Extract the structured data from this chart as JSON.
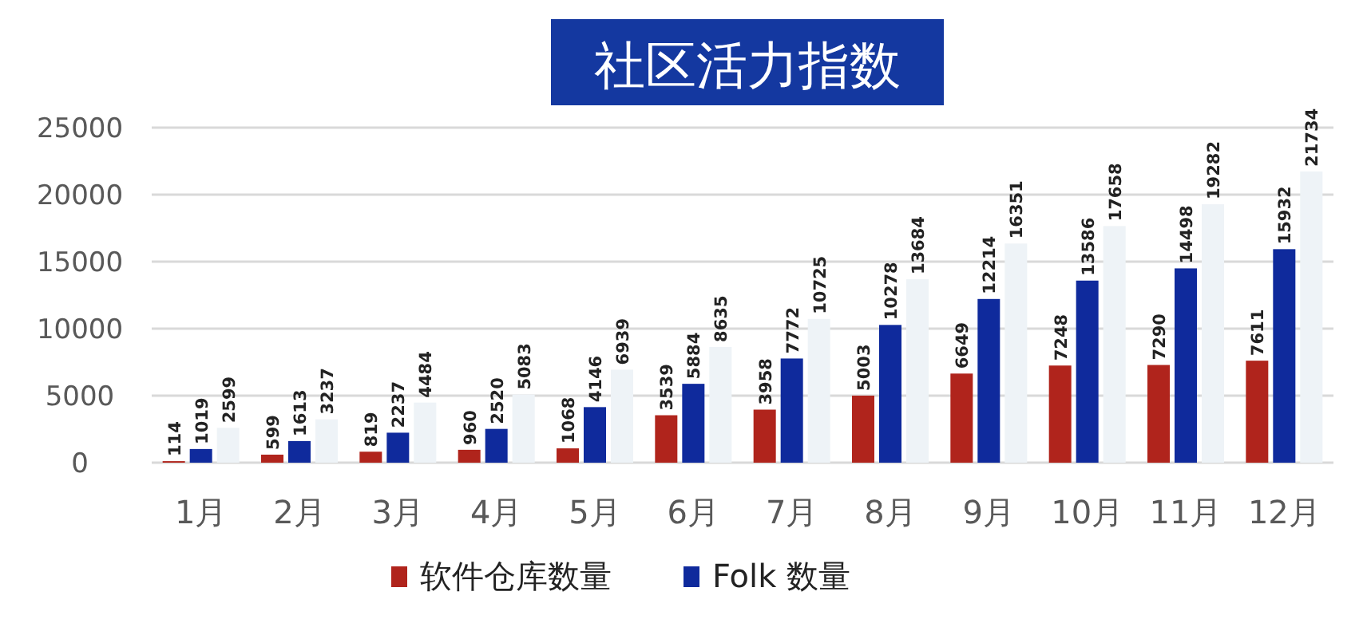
{
  "chart_data": {
    "type": "bar",
    "title": "社区活力指数",
    "categories": [
      "1月",
      "2月",
      "3月",
      "4月",
      "5月",
      "6月",
      "7月",
      "8月",
      "9月",
      "10月",
      "11月",
      "12月"
    ],
    "series": [
      {
        "name": "软件仓库数量",
        "color": "#b0241c",
        "values": [
          114,
          599,
          819,
          960,
          1068,
          3539,
          3958,
          5003,
          6649,
          7248,
          7290,
          7611
        ]
      },
      {
        "name": "Folk 数量",
        "color": "#0f2a9c",
        "values": [
          1019,
          1613,
          2237,
          2520,
          4146,
          5884,
          7772,
          10278,
          12214,
          13586,
          14498,
          15932
        ]
      },
      {
        "color": "#eef3f7",
        "values": [
          2599,
          3237,
          4484,
          5083,
          6939,
          8635,
          10725,
          13684,
          16351,
          17658,
          19282,
          21734
        ]
      }
    ],
    "ylim": [
      0,
      25000
    ],
    "yticks": [
      0,
      5000,
      10000,
      15000,
      20000,
      25000
    ],
    "grid": "y",
    "legend": "bottom",
    "data_labels": true
  }
}
